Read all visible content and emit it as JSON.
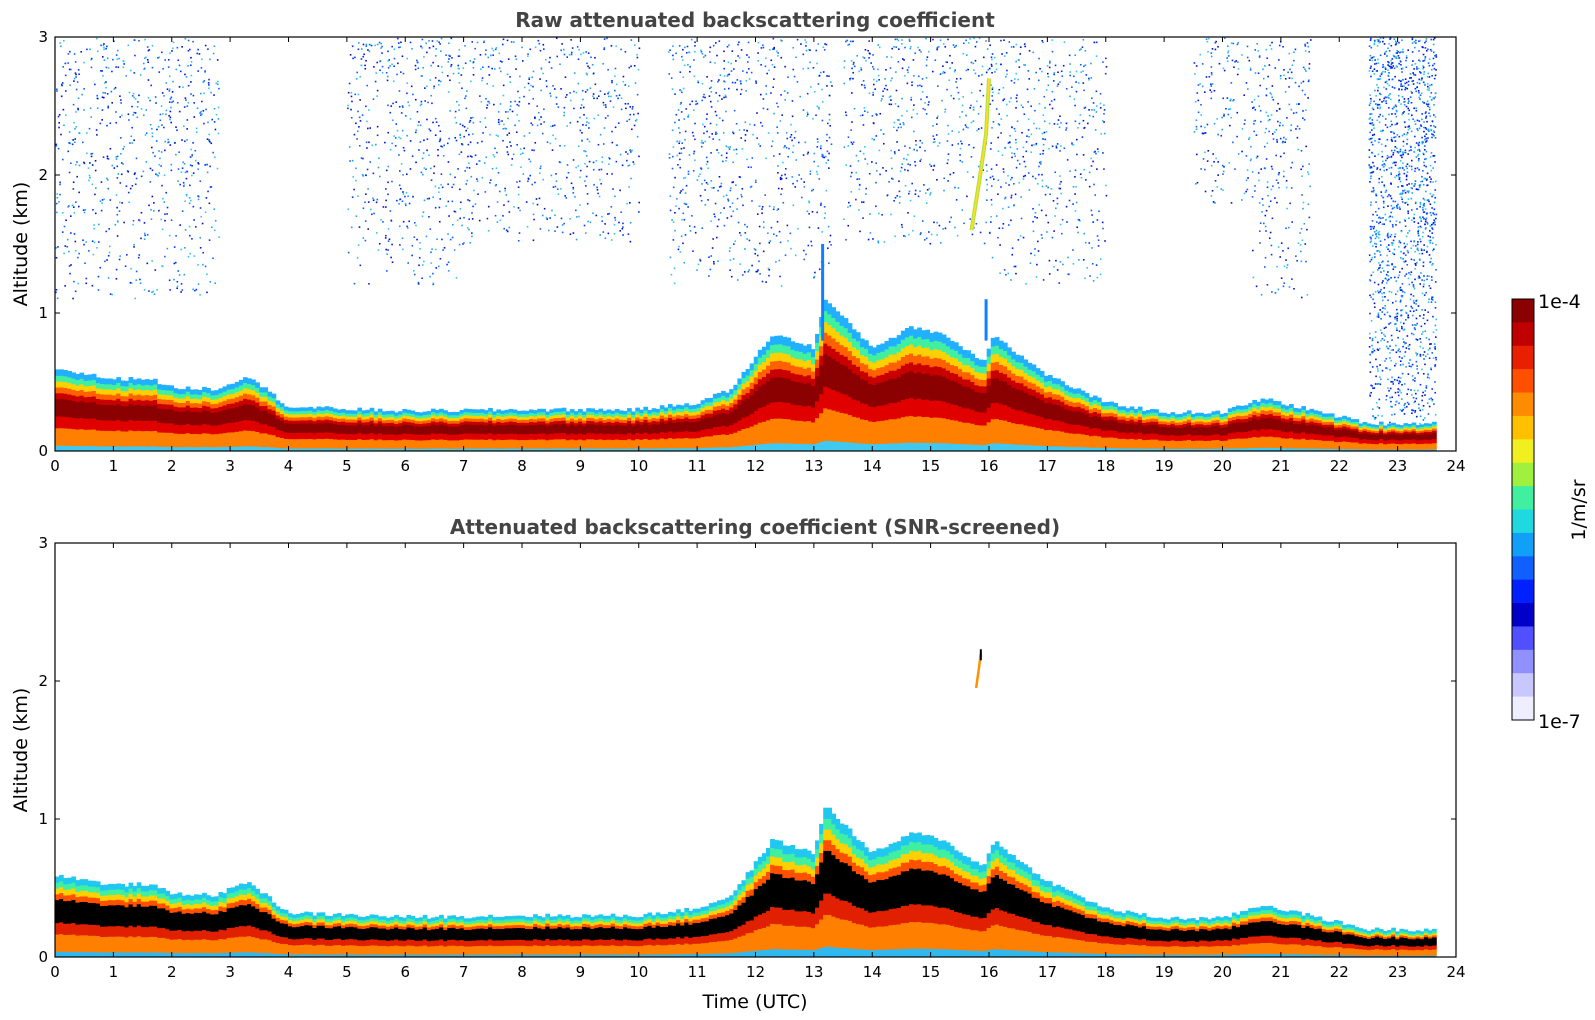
{
  "chart_data": [
    {
      "type": "heatmap",
      "title": "Raw attenuated backscattering coefficient",
      "xlabel": "",
      "ylabel": "Altitude (km)",
      "xlim": [
        0,
        24
      ],
      "ylim": [
        0,
        3
      ],
      "xticks": [
        "0",
        "1",
        "2",
        "3",
        "4",
        "5",
        "6",
        "7",
        "8",
        "9",
        "10",
        "11",
        "12",
        "13",
        "14",
        "15",
        "16",
        "17",
        "18",
        "19",
        "20",
        "21",
        "22",
        "23",
        "24"
      ],
      "yticks": [
        "0",
        "1",
        "2",
        "3"
      ],
      "data_end_time": 23.65,
      "boundary_layer_top_km": [
        [
          0,
          0.6
        ],
        [
          1,
          0.52
        ],
        [
          1.6,
          0.53
        ],
        [
          2,
          0.46
        ],
        [
          2.8,
          0.45
        ],
        [
          3.3,
          0.55
        ],
        [
          4,
          0.32
        ],
        [
          6,
          0.29
        ],
        [
          8,
          0.3
        ],
        [
          10,
          0.3
        ],
        [
          11,
          0.35
        ],
        [
          11.6,
          0.45
        ],
        [
          12.3,
          0.85
        ],
        [
          13,
          0.75
        ],
        [
          13.2,
          1.1
        ],
        [
          14,
          0.75
        ],
        [
          14.7,
          0.9
        ],
        [
          15.2,
          0.85
        ],
        [
          15.9,
          0.65
        ],
        [
          16.1,
          0.85
        ],
        [
          16.5,
          0.7
        ],
        [
          17,
          0.55
        ],
        [
          18,
          0.35
        ],
        [
          19,
          0.28
        ],
        [
          20,
          0.28
        ],
        [
          20.7,
          0.38
        ],
        [
          21.5,
          0.3
        ],
        [
          22,
          0.25
        ],
        [
          22.5,
          0.2
        ],
        [
          23.65,
          0.2
        ]
      ],
      "noise_regions_km": [
        [
          0,
          2.8,
          1.1,
          3
        ],
        [
          5,
          7,
          1.2,
          3
        ],
        [
          7,
          10,
          1.5,
          3
        ],
        [
          10.5,
          13.3,
          1.2,
          3
        ],
        [
          13.5,
          16,
          1.5,
          3
        ],
        [
          16,
          18,
          1.2,
          3
        ],
        [
          19.5,
          20.5,
          1.8,
          3
        ],
        [
          20.5,
          21.5,
          1.1,
          3
        ],
        [
          22.5,
          23.65,
          0.2,
          3
        ]
      ],
      "plume": [
        [
          15.7,
          1.6
        ],
        [
          15.85,
          2
        ],
        [
          15.95,
          2.3
        ],
        [
          16.0,
          2.7
        ]
      ]
    },
    {
      "type": "heatmap",
      "title": "Attenuated backscattering coefficient (SNR-screened)",
      "xlabel": "Time (UTC)",
      "ylabel": "Altitude (km)",
      "xlim": [
        0,
        24
      ],
      "ylim": [
        0,
        3
      ],
      "xticks": [
        "0",
        "1",
        "2",
        "3",
        "4",
        "5",
        "6",
        "7",
        "8",
        "9",
        "10",
        "11",
        "12",
        "13",
        "14",
        "15",
        "16",
        "17",
        "18",
        "19",
        "20",
        "21",
        "22",
        "23",
        "24"
      ],
      "yticks": [
        "0",
        "1",
        "2",
        "3"
      ],
      "data_end_time": 23.65,
      "screened_plume": [
        [
          15.78,
          1.95
        ],
        [
          15.83,
          2.1
        ],
        [
          15.86,
          2.2
        ]
      ]
    }
  ],
  "colorbar": {
    "label": "1/m/sr",
    "max_label": "1e-4",
    "min_label": "1e-7",
    "colors": [
      "#8b0000",
      "#c00000",
      "#e82000",
      "#ff5000",
      "#ff8c00",
      "#ffc000",
      "#f0f020",
      "#a0f040",
      "#40f0a0",
      "#20d8e0",
      "#10a0f8",
      "#1060ff",
      "#0020ff",
      "#0000c8",
      "#5050ff",
      "#9090ff",
      "#c8c8ff",
      "#eeeeff"
    ]
  }
}
